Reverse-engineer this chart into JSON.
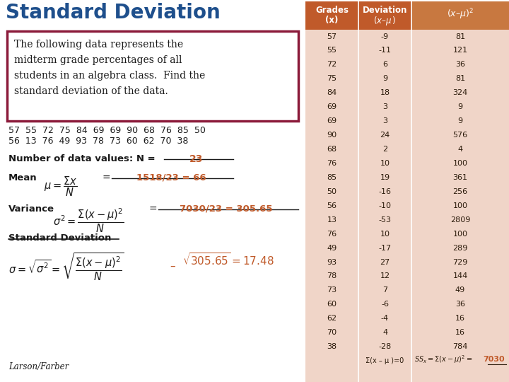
{
  "title": "Standard Deviation",
  "title_color": "#1e4f8c",
  "left_bg": "#ffffff",
  "table_bg": "#f0d5c8",
  "header_col12": "#c05a2a",
  "header_col3": "#c05a2a",
  "grades": [
    57,
    55,
    72,
    75,
    84,
    69,
    69,
    90,
    68,
    76,
    85,
    50,
    56,
    13,
    76,
    49,
    93,
    78,
    73,
    60,
    62,
    70,
    38
  ],
  "deviations": [
    -9,
    -11,
    6,
    9,
    18,
    3,
    3,
    24,
    2,
    10,
    19,
    -16,
    -10,
    -53,
    10,
    -17,
    27,
    12,
    7,
    -6,
    -4,
    4,
    -28
  ],
  "sq_deviations": [
    81,
    121,
    36,
    81,
    324,
    9,
    9,
    576,
    4,
    100,
    361,
    256,
    100,
    2809,
    100,
    289,
    729,
    144,
    49,
    36,
    16,
    16,
    784
  ],
  "sum_dev": "Σ(x – μ )=0",
  "sum_sq_label": "SSₓ=Σ(x – μ)² =",
  "sum_sq_value": "7030",
  "footer": "Larson/Farber",
  "orange_red": "#c05a2a",
  "dark_red": "#7a1a1a",
  "box_border": "#8b1a3a",
  "text_dark": "#1a1a1a"
}
